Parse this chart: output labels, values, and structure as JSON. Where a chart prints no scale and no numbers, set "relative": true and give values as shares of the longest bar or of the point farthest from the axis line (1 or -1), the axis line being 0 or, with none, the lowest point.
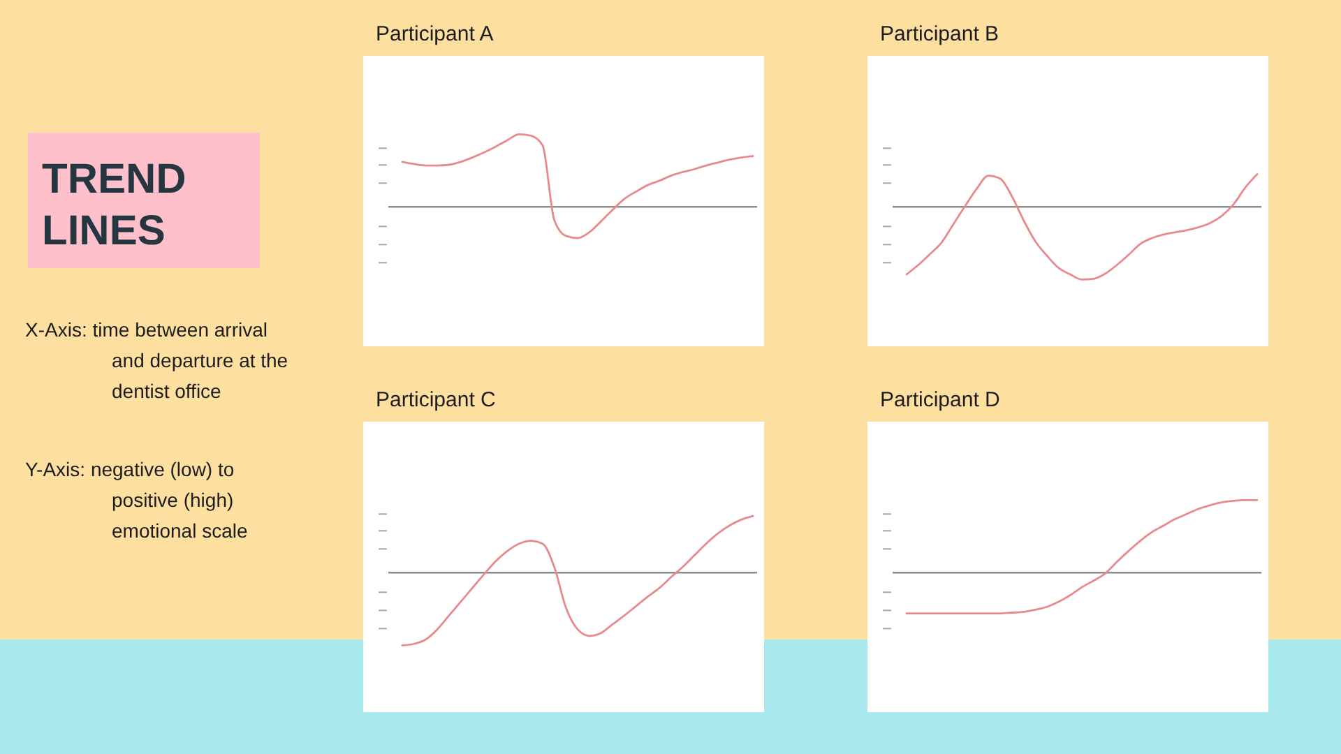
{
  "chart_data": [
    {
      "type": "other",
      "title": "TREND LINES",
      "annotations": [
        "X-Axis: time between arrival and departure at the dentist office",
        "Y-Axis: negative (low) to positive (high) emotional scale"
      ]
    },
    {
      "type": "line",
      "title": "Participant A",
      "relative": true,
      "color": "#e68a8e",
      "categories": [
        null,
        null,
        null,
        null,
        null,
        null,
        null,
        null,
        null,
        null,
        null,
        null,
        null,
        null,
        null,
        null,
        null,
        null,
        null,
        null,
        null,
        null,
        null,
        null,
        null,
        null,
        null,
        null,
        null,
        null,
        null
      ],
      "values": [
        0.62,
        0.59,
        0.57,
        0.57,
        0.58,
        0.62,
        0.68,
        0.75,
        0.83,
        0.92,
        1,
        0.98,
        0.85,
        -0.18,
        -0.4,
        -0.43,
        -0.35,
        -0.2,
        -0.04,
        0.11,
        0.21,
        0.3,
        0.36,
        0.43,
        0.48,
        0.52,
        0.57,
        0.61,
        0.65,
        0.68,
        0.7
      ]
    },
    {
      "type": "line",
      "title": "Participant B",
      "relative": true,
      "color": "#e68a8e",
      "categories": [
        null,
        null,
        null,
        null,
        null,
        null,
        null,
        null,
        null,
        null,
        null,
        null,
        null,
        null,
        null,
        null,
        null,
        null,
        null,
        null,
        null,
        null,
        null,
        null,
        null,
        null,
        null,
        null,
        null,
        null,
        null
      ],
      "values": [
        -0.93,
        -0.8,
        -0.65,
        -0.49,
        -0.24,
        0.01,
        0.25,
        0.43,
        0.39,
        0.15,
        -0.18,
        -0.47,
        -0.67,
        -0.84,
        -0.93,
        -1,
        -0.99,
        -0.92,
        -0.8,
        -0.66,
        -0.51,
        -0.43,
        -0.38,
        -0.35,
        -0.32,
        -0.28,
        -0.22,
        -0.12,
        0.04,
        0.27,
        0.45
      ]
    },
    {
      "type": "line",
      "title": "Participant C",
      "relative": true,
      "color": "#e68a8e",
      "categories": [
        null,
        null,
        null,
        null,
        null,
        null,
        null,
        null,
        null,
        null,
        null,
        null,
        null,
        null,
        null,
        null,
        null,
        null,
        null,
        null,
        null,
        null,
        null,
        null,
        null,
        null,
        null,
        null,
        null,
        null,
        null
      ],
      "values": [
        -1,
        -0.98,
        -0.92,
        -0.78,
        -0.59,
        -0.4,
        -0.21,
        -0.02,
        0.16,
        0.3,
        0.4,
        0.44,
        0.4,
        0.08,
        -0.48,
        -0.78,
        -0.87,
        -0.83,
        -0.71,
        -0.59,
        -0.46,
        -0.33,
        -0.21,
        -0.06,
        0.08,
        0.24,
        0.4,
        0.54,
        0.65,
        0.73,
        0.78
      ]
    },
    {
      "type": "line",
      "title": "Participant D",
      "relative": true,
      "color": "#e68a8e",
      "categories": [
        null,
        null,
        null,
        null,
        null,
        null,
        null,
        null,
        null,
        null,
        null,
        null,
        null,
        null,
        null,
        null,
        null,
        null,
        null,
        null,
        null,
        null,
        null,
        null,
        null,
        null,
        null,
        null,
        null,
        null,
        null
      ],
      "values": [
        -0.56,
        -0.56,
        -0.56,
        -0.56,
        -0.56,
        -0.56,
        -0.56,
        -0.56,
        -0.56,
        -0.55,
        -0.54,
        -0.51,
        -0.47,
        -0.4,
        -0.31,
        -0.2,
        -0.11,
        -0.01,
        0.15,
        0.3,
        0.44,
        0.56,
        0.65,
        0.74,
        0.81,
        0.88,
        0.93,
        0.97,
        0.99,
        1,
        1
      ]
    }
  ]
}
